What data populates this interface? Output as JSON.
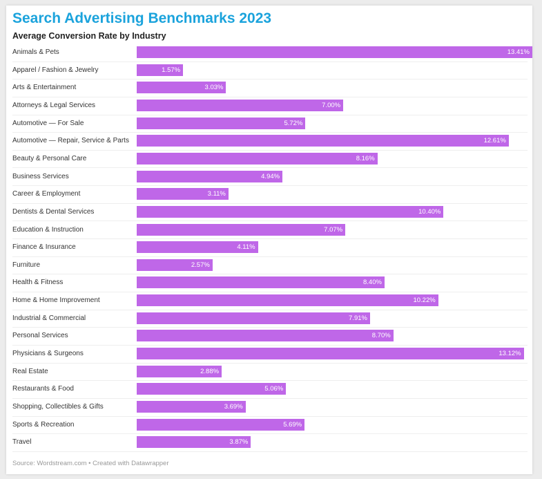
{
  "title": "Search Advertising Benchmarks 2023",
  "subtitle": "Average Conversion Rate by Industry",
  "source": "Source: Wordstream.com • Created with Datawrapper",
  "chart_data": {
    "type": "bar",
    "orientation": "horizontal",
    "title": "Search Advertising Benchmarks 2023",
    "subtitle": "Average Conversion Rate by Industry",
    "bar_color": "#bf67e8",
    "value_format": "percent",
    "xlim": [
      0,
      13.41
    ],
    "grid": false,
    "categories": [
      "Animals & Pets",
      "Apparel / Fashion & Jewelry",
      "Arts & Entertainment",
      "Attorneys & Legal Services",
      "Automotive — For Sale",
      "Automotive — Repair, Service & Parts",
      "Beauty & Personal Care",
      "Business Services",
      "Career & Employment",
      "Dentists & Dental Services",
      "Education & Instruction",
      "Finance & Insurance",
      "Furniture",
      "Health & Fitness",
      "Home & Home Improvement",
      "Industrial & Commercial",
      "Personal Services",
      "Physicians & Surgeons",
      "Real Estate",
      "Restaurants & Food",
      "Shopping, Collectibles & Gifts",
      "Sports & Recreation",
      "Travel"
    ],
    "values": [
      13.41,
      1.57,
      3.03,
      7.0,
      5.72,
      12.61,
      8.16,
      4.94,
      3.11,
      10.4,
      7.07,
      4.11,
      2.57,
      8.4,
      10.22,
      7.91,
      8.7,
      13.12,
      2.88,
      5.06,
      3.69,
      5.69,
      3.87
    ],
    "value_labels": [
      "13.41%",
      "1.57%",
      "3.03%",
      "7.00%",
      "5.72%",
      "12.61%",
      "8.16%",
      "4.94%",
      "3.11%",
      "10.40%",
      "7.07%",
      "4.11%",
      "2.57%",
      "8.40%",
      "10.22%",
      "7.91%",
      "8.70%",
      "13.12%",
      "2.88%",
      "5.06%",
      "3.69%",
      "5.69%",
      "3.87%"
    ]
  }
}
